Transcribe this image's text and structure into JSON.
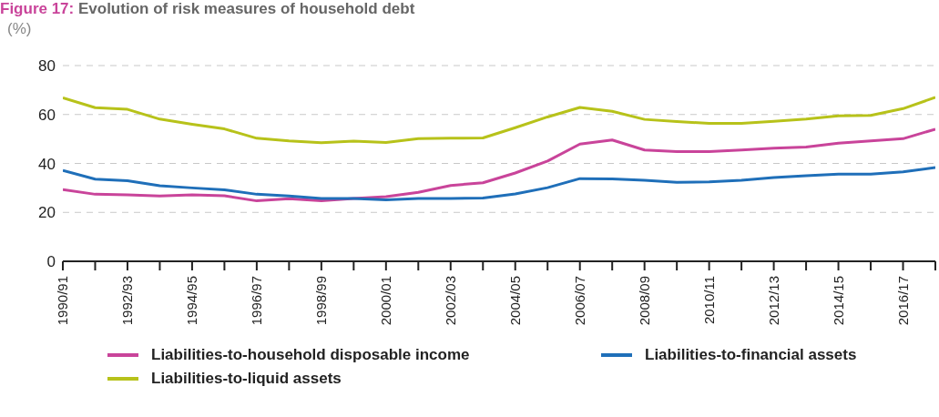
{
  "chart_data": {
    "type": "line",
    "title": "Figure 17: Evolution of risk measures of household debt",
    "ylabel": "(%)",
    "categories": [
      "1990/91",
      null,
      "1992/93",
      null,
      "1994/95",
      null,
      "1996/97",
      null,
      "1998/99",
      null,
      "2000/01",
      null,
      "2002/03",
      null,
      "2004/05",
      null,
      "2006/07",
      null,
      "2008/09",
      null,
      "2010/11",
      null,
      "2012/13",
      null,
      "2014/15",
      null,
      "2016/17",
      null
    ],
    "series": [
      {
        "name": "Liabilities-to-household disposable income",
        "color": "#c9449a",
        "values": [
          29.3,
          27.4,
          27.2,
          26.7,
          27.2,
          26.8,
          24.7,
          25.6,
          24.7,
          25.7,
          26.4,
          28.2,
          31.0,
          32.1,
          36.1,
          41.0,
          47.9,
          49.6,
          45.5,
          44.8,
          44.8,
          45.5,
          46.2,
          46.7,
          48.3,
          49.2,
          50.1,
          54.0
        ]
      },
      {
        "name": "Liabilities-to-financial assets",
        "color": "#1f6fb9",
        "values": [
          37.1,
          33.6,
          32.9,
          30.9,
          30.0,
          29.2,
          27.4,
          26.7,
          25.7,
          25.7,
          25.1,
          25.7,
          25.7,
          25.9,
          27.5,
          30.1,
          33.8,
          33.7,
          33.1,
          32.3,
          32.5,
          33.1,
          34.2,
          35.0,
          35.6,
          35.6,
          36.6,
          38.3
        ]
      },
      {
        "name": "Liabilities-to-liquid assets",
        "color": "#b7c21a",
        "values": [
          66.8,
          62.8,
          62.1,
          58.1,
          56.0,
          54.1,
          50.3,
          49.2,
          48.5,
          49.1,
          48.6,
          50.1,
          50.3,
          50.4,
          54.6,
          59.0,
          62.9,
          61.3,
          58.0,
          57.1,
          56.4,
          56.4,
          57.2,
          58.1,
          59.4,
          59.6,
          62.4,
          67.0
        ]
      }
    ],
    "ylim": [
      0,
      80
    ],
    "yticks": [
      0,
      20,
      40,
      60,
      80
    ],
    "grid": "y",
    "legend": "bottom",
    "marker": "none",
    "line_style": "solid"
  }
}
